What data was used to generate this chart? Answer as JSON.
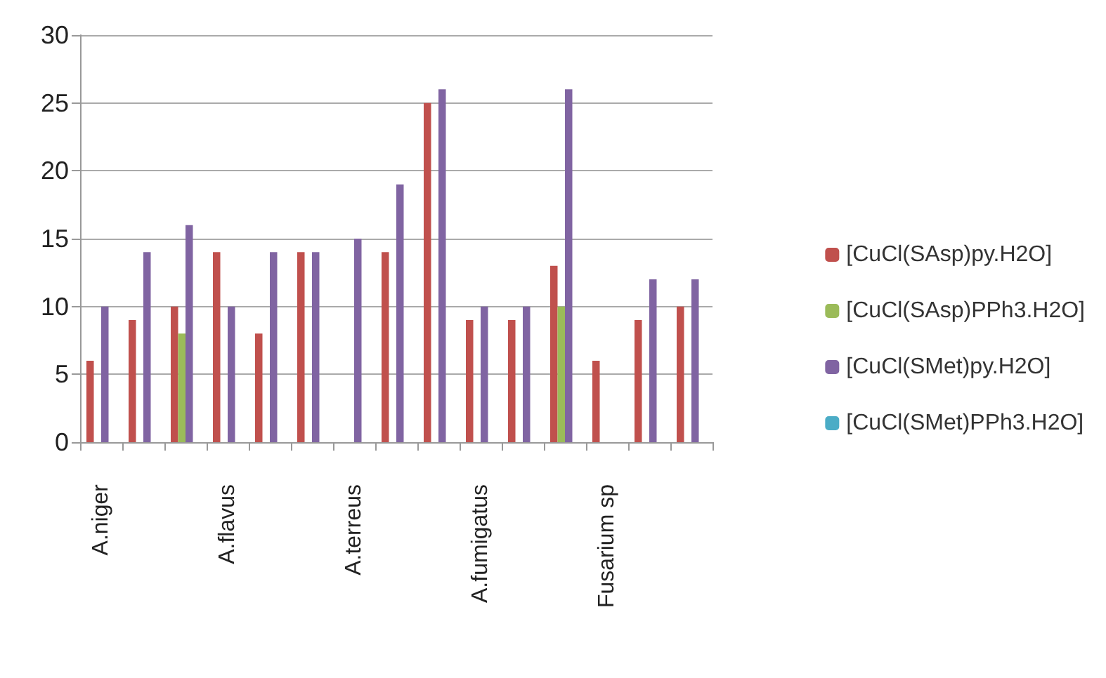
{
  "chart_data": {
    "type": "bar",
    "categories": [
      "A.niger",
      null,
      null,
      "A.flavus",
      null,
      null,
      "A.terreus",
      null,
      null,
      "A.fumigatus",
      null,
      null,
      "Fusarium sp",
      null,
      null
    ],
    "series": [
      {
        "name": "[CuCl(SAsp)py.H2O]",
        "color": "#c0504d",
        "values": [
          6,
          9,
          10,
          14,
          8,
          14,
          null,
          14,
          25,
          9,
          9,
          13,
          6,
          9,
          10
        ]
      },
      {
        "name": "[CuCl(SAsp)PPh3.H2O]",
        "color": "#9bbb59",
        "values": [
          null,
          null,
          8,
          null,
          null,
          null,
          null,
          null,
          null,
          null,
          null,
          10,
          null,
          null,
          null
        ]
      },
      {
        "name": "[CuCl(SMet)py.H2O]",
        "color": "#8064a2",
        "values": [
          10,
          14,
          16,
          10,
          14,
          14,
          15,
          19,
          26,
          10,
          10,
          26,
          null,
          12,
          12
        ]
      },
      {
        "name": "[CuCl(SMet)PPh3.H2O]",
        "color": "#4bacc6",
        "values": [
          null,
          null,
          null,
          null,
          null,
          null,
          null,
          null,
          null,
          null,
          null,
          null,
          null,
          null,
          null
        ]
      }
    ],
    "ylim": [
      0,
      30
    ],
    "yticks": [
      0,
      5,
      10,
      15,
      20,
      25,
      30
    ],
    "grid": "y",
    "legend": "right"
  }
}
